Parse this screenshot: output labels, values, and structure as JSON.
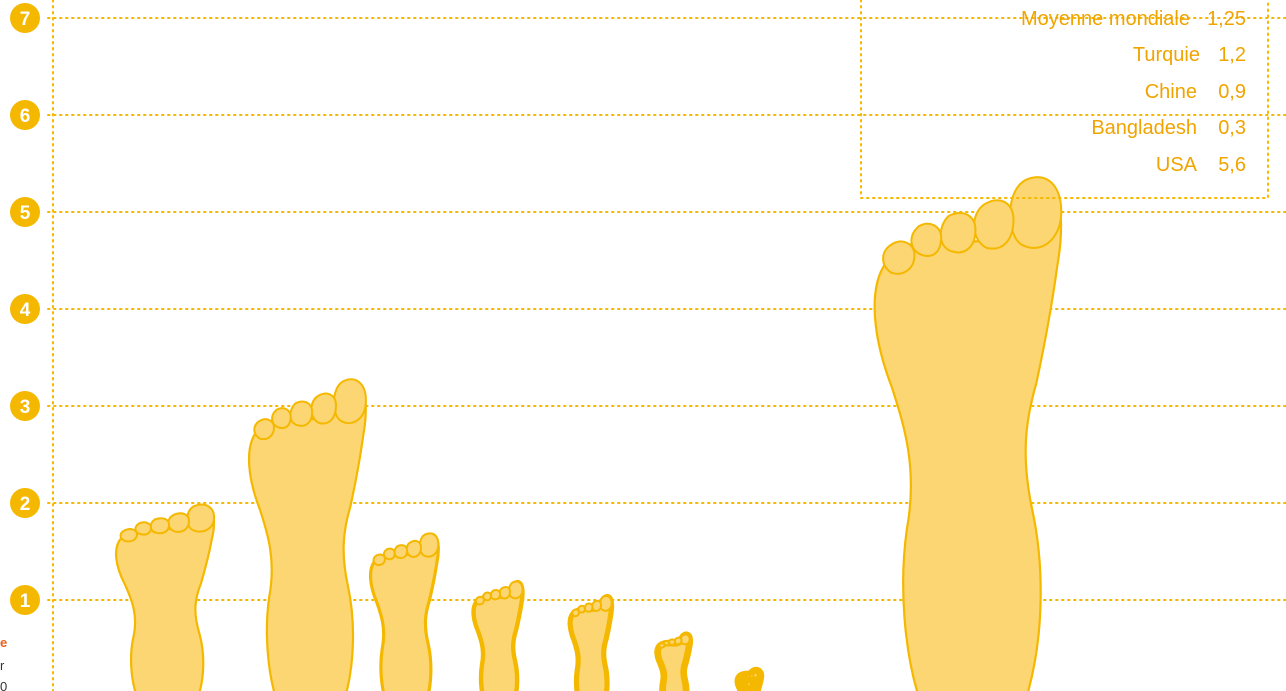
{
  "chart_data": {
    "type": "bar",
    "ylim": [
      0,
      7
    ],
    "yticks": [
      "1",
      "2",
      "3",
      "4",
      "5",
      "6",
      "7"
    ],
    "grid": true,
    "legend": [
      {
        "label": "Moyenne mondiale",
        "value": "1,25"
      },
      {
        "label": "Turquie",
        "value": "1,2"
      },
      {
        "label": "Chine",
        "value": "0,9"
      },
      {
        "label": "Bangladesh",
        "value": "0,3"
      },
      {
        "label": "USA",
        "value": "5,6"
      }
    ],
    "values": [
      2.0,
      3.3,
      1.7,
      1.2,
      1.05,
      0.65,
      0.25,
      5.4
    ],
    "colors": {
      "foot": "#fcd672",
      "outline": "#f5b800",
      "accent": "#f0a400",
      "note": "#e8611a"
    }
  },
  "side_note": {
    "line1": "e",
    "line2": "r",
    "line3": "0"
  }
}
